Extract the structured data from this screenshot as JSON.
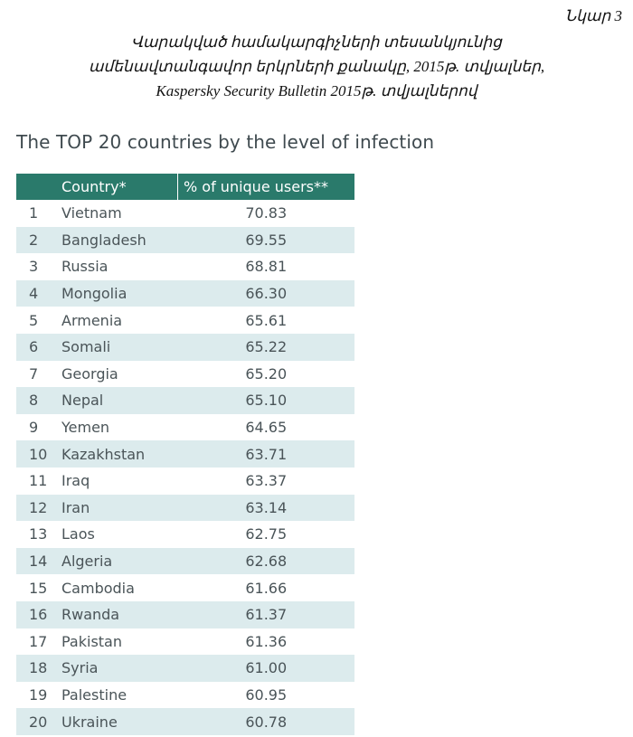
{
  "figure_number": "Նկար 3",
  "caption_lines": [
    "Վարակված համակարգիչների տեսանկյունից",
    "ամենավտանգավոր երկրների քանակը, 2015թ. տվյալներ,",
    "Kaspersky Security Bulletin 2015թ. տվյալներով"
  ],
  "table": {
    "title": "The TOP 20 countries by the level of infection",
    "headers": [
      "",
      "Country*",
      "% of unique users**"
    ],
    "header_color": "#2a7a6b",
    "stripe_color": "#dcebed",
    "rows": [
      {
        "rank": "1",
        "country": "Vietnam",
        "value": "70.83"
      },
      {
        "rank": "2",
        "country": "Bangladesh",
        "value": "69.55"
      },
      {
        "rank": "3",
        "country": "Russia",
        "value": "68.81"
      },
      {
        "rank": "4",
        "country": "Mongolia",
        "value": "66.30"
      },
      {
        "rank": "5",
        "country": "Armenia",
        "value": "65.61"
      },
      {
        "rank": "6",
        "country": "Somali",
        "value": "65.22"
      },
      {
        "rank": "7",
        "country": "Georgia",
        "value": "65.20"
      },
      {
        "rank": "8",
        "country": "Nepal",
        "value": "65.10"
      },
      {
        "rank": "9",
        "country": "Yemen",
        "value": "64.65"
      },
      {
        "rank": "10",
        "country": "Kazakhstan",
        "value": "63.71"
      },
      {
        "rank": "11",
        "country": "Iraq",
        "value": "63.37"
      },
      {
        "rank": "12",
        "country": "Iran",
        "value": "63.14"
      },
      {
        "rank": "13",
        "country": "Laos",
        "value": "62.75"
      },
      {
        "rank": "14",
        "country": "Algeria",
        "value": "62.68"
      },
      {
        "rank": "15",
        "country": "Cambodia",
        "value": "61.66"
      },
      {
        "rank": "16",
        "country": "Rwanda",
        "value": "61.37"
      },
      {
        "rank": "17",
        "country": "Pakistan",
        "value": "61.36"
      },
      {
        "rank": "18",
        "country": "Syria",
        "value": "61.00"
      },
      {
        "rank": "19",
        "country": "Palestine",
        "value": "60.95"
      },
      {
        "rank": "20",
        "country": "Ukraine",
        "value": "60.78"
      }
    ]
  }
}
